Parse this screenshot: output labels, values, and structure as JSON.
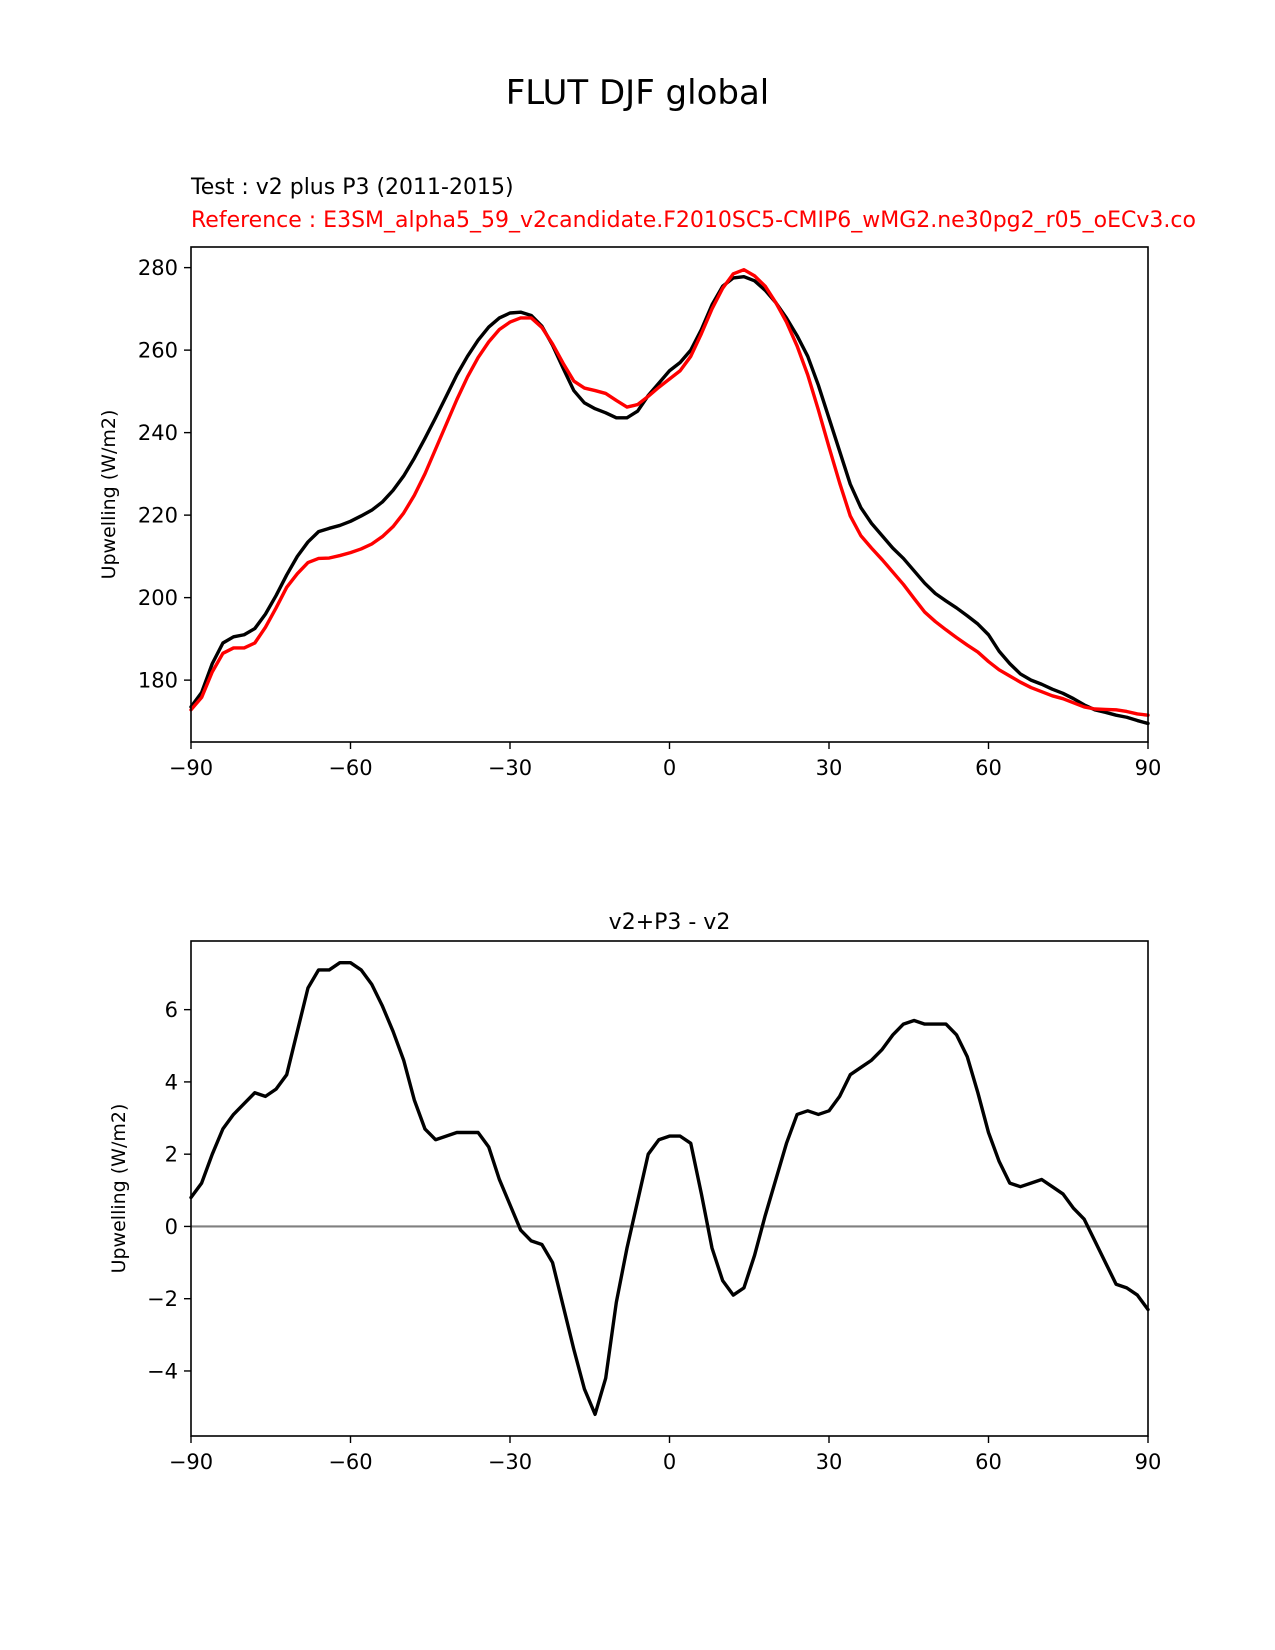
{
  "figure": {
    "suptitle": "FLUT DJF global",
    "test_label": "Test : v2 plus P3 (2011-2015)",
    "reference_label": "Reference : E3SM_alpha5_59_v2candidate.F2010SC5-CMIP6_wMG2.ne30pg2_r05_oECv3.co",
    "colors": {
      "test": "#000000",
      "reference": "#ff0000",
      "zero_line": "#808080"
    }
  },
  "chart_data": [
    {
      "type": "line",
      "title": "",
      "xlabel": "",
      "ylabel": "Upwelling (W/m2)",
      "xlim": [
        -90,
        90
      ],
      "ylim": [
        165,
        285
      ],
      "xticks": [
        -90,
        -60,
        -30,
        0,
        30,
        60,
        90
      ],
      "xtick_labels": [
        "−90",
        "−60",
        "−30",
        "0",
        "30",
        "60",
        "90"
      ],
      "yticks": [
        180,
        200,
        220,
        240,
        260,
        280
      ],
      "ytick_labels": [
        "180",
        "200",
        "220",
        "240",
        "260",
        "280"
      ],
      "x": [
        -90,
        -88,
        -86,
        -84,
        -82,
        -80,
        -78,
        -76,
        -74,
        -72,
        -70,
        -68,
        -66,
        -64,
        -62,
        -60,
        -58,
        -56,
        -54,
        -52,
        -50,
        -48,
        -46,
        -44,
        -42,
        -40,
        -38,
        -36,
        -34,
        -32,
        -30,
        -28,
        -26,
        -24,
        -22,
        -20,
        -18,
        -16,
        -14,
        -12,
        -10,
        -8,
        -6,
        -4,
        -2,
        0,
        2,
        4,
        6,
        8,
        10,
        12,
        14,
        16,
        18,
        20,
        22,
        24,
        26,
        28,
        30,
        32,
        34,
        36,
        38,
        40,
        42,
        44,
        46,
        48,
        50,
        52,
        54,
        56,
        58,
        60,
        62,
        64,
        66,
        68,
        70,
        72,
        74,
        76,
        78,
        80,
        82,
        84,
        86,
        88,
        90
      ],
      "series": [
        {
          "color": "#000000",
          "values": [
            173.5,
            177,
            184,
            189,
            190.5,
            191,
            192.5,
            196,
            200.5,
            205.5,
            210,
            213.5,
            216,
            216.8,
            217.5,
            218.5,
            219.8,
            221.2,
            223.2,
            226,
            229.5,
            233.8,
            238.6,
            243.6,
            248.8,
            254,
            258.5,
            262.4,
            265.6,
            267.8,
            269,
            269.2,
            268.4,
            265.8,
            261.2,
            255.6,
            250.2,
            247.2,
            245.8,
            244.8,
            243.6,
            243.6,
            245.2,
            249,
            252,
            255,
            257,
            260,
            265,
            271,
            275.5,
            277.5,
            277.8,
            276.8,
            274.5,
            271.5,
            267.8,
            263.5,
            258.5,
            251.5,
            243.5,
            235.5,
            227.5,
            221.8,
            218,
            215,
            212,
            209.5,
            206.5,
            203.5,
            201,
            199.2,
            197.5,
            195.6,
            193.6,
            191,
            187,
            184,
            181.5,
            180,
            179,
            177.8,
            176.8,
            175.5,
            174,
            172.8,
            172.2,
            171.5,
            171,
            170.2,
            169.5
          ]
        },
        {
          "color": "#ff0000",
          "values": [
            172.8,
            175.8,
            182,
            186.5,
            187.8,
            187.8,
            189,
            192.8,
            197.5,
            202.5,
            205.8,
            208.5,
            209.5,
            209.6,
            210.2,
            210.9,
            211.8,
            213,
            214.8,
            217.2,
            220.5,
            224.8,
            230,
            236,
            242,
            248,
            253.5,
            258.2,
            262,
            265,
            266.8,
            267.8,
            267.8,
            265.5,
            261.5,
            256.8,
            252.5,
            250.8,
            250.2,
            249.5,
            247.8,
            246.2,
            246.8,
            248.8,
            251,
            253,
            255,
            258.5,
            264,
            270,
            275,
            278.5,
            279.5,
            278,
            275.5,
            271.5,
            266.8,
            261,
            254,
            245.5,
            236.5,
            227.8,
            219.8,
            215,
            212,
            209.2,
            206.2,
            203.2,
            199.8,
            196.5,
            194.2,
            192.2,
            190.3,
            188.5,
            186.8,
            184.5,
            182.5,
            181,
            179.5,
            178.2,
            177.2,
            176.2,
            175.5,
            174.5,
            173.5,
            173,
            172.9,
            172.8,
            172.4,
            171.8,
            171.5
          ]
        }
      ]
    },
    {
      "type": "line",
      "title": "v2+P3 - v2",
      "xlabel": "",
      "ylabel": "Upwelling (W/m2)",
      "xlim": [
        -90,
        90
      ],
      "ylim": [
        -5.8,
        7.9
      ],
      "xticks": [
        -90,
        -60,
        -30,
        0,
        30,
        60,
        90
      ],
      "xtick_labels": [
        "−90",
        "−60",
        "−30",
        "0",
        "30",
        "60",
        "90"
      ],
      "yticks": [
        -4,
        -2,
        0,
        2,
        4,
        6
      ],
      "ytick_labels": [
        "−4",
        "−2",
        "0",
        "2",
        "4",
        "6"
      ],
      "reference_line_y": 0,
      "x": [
        -90,
        -88,
        -86,
        -84,
        -82,
        -80,
        -78,
        -76,
        -74,
        -72,
        -70,
        -68,
        -66,
        -64,
        -62,
        -60,
        -58,
        -56,
        -54,
        -52,
        -50,
        -48,
        -46,
        -44,
        -42,
        -40,
        -38,
        -36,
        -34,
        -32,
        -30,
        -28,
        -26,
        -24,
        -22,
        -20,
        -18,
        -16,
        -14,
        -12,
        -10,
        -8,
        -6,
        -4,
        -2,
        0,
        2,
        4,
        6,
        8,
        10,
        12,
        14,
        16,
        18,
        20,
        22,
        24,
        26,
        28,
        30,
        32,
        34,
        36,
        38,
        40,
        42,
        44,
        46,
        48,
        50,
        52,
        54,
        56,
        58,
        60,
        62,
        64,
        66,
        68,
        70,
        72,
        74,
        76,
        78,
        80,
        82,
        84,
        86,
        88,
        90
      ],
      "series": [
        {
          "color": "#000000",
          "values": [
            0.8,
            1.2,
            2.0,
            2.7,
            3.1,
            3.4,
            3.7,
            3.6,
            3.8,
            4.2,
            5.4,
            6.6,
            7.1,
            7.1,
            7.3,
            7.3,
            7.1,
            6.7,
            6.1,
            5.4,
            4.6,
            3.5,
            2.7,
            2.4,
            2.5,
            2.6,
            2.6,
            2.6,
            2.2,
            1.3,
            0.6,
            -0.1,
            -0.4,
            -0.5,
            -1.0,
            -2.2,
            -3.4,
            -4.5,
            -5.2,
            -4.2,
            -2.1,
            -0.6,
            0.7,
            2.0,
            2.4,
            2.5,
            2.5,
            2.3,
            0.9,
            -0.6,
            -1.5,
            -1.9,
            -1.7,
            -0.8,
            0.3,
            1.3,
            2.3,
            3.1,
            3.2,
            3.1,
            3.2,
            3.6,
            4.2,
            4.4,
            4.6,
            4.9,
            5.3,
            5.6,
            5.7,
            5.6,
            5.6,
            5.6,
            5.3,
            4.7,
            3.7,
            2.6,
            1.8,
            1.2,
            1.1,
            1.2,
            1.3,
            1.1,
            0.9,
            0.5,
            0.2,
            -0.4,
            -1.0,
            -1.6,
            -1.7,
            -1.9,
            -2.3
          ]
        }
      ]
    }
  ]
}
